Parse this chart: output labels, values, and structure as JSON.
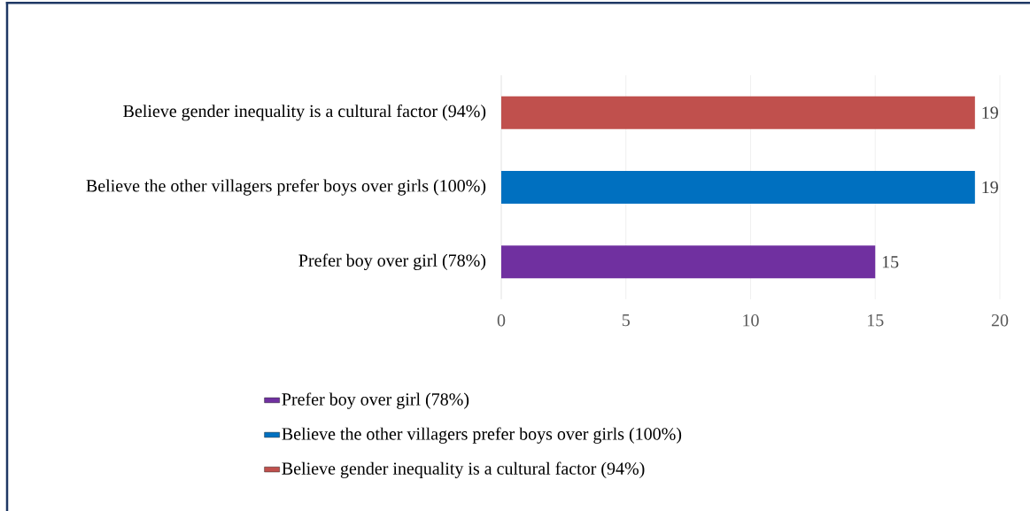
{
  "chart_data": {
    "type": "bar",
    "orientation": "horizontal",
    "categories": [
      "Believe gender inequality is a cultural factor (94%)",
      "Believe the other villagers prefer boys over girls (100%)",
      "Prefer boy over girl (78%)"
    ],
    "series": [
      {
        "name": "Believe gender inequality is a cultural factor (94%)",
        "color": "#c0504d",
        "values": [
          19,
          null,
          null
        ]
      },
      {
        "name": "Believe the other villagers prefer boys over girls (100%)",
        "color": "#0070c0",
        "values": [
          null,
          19,
          null
        ]
      },
      {
        "name": "Prefer boy over girl (78%)",
        "color": "#7030a0",
        "values": [
          null,
          null,
          15
        ]
      }
    ],
    "xlim": [
      0,
      20
    ],
    "xticks": [
      0,
      5,
      10,
      15,
      20
    ],
    "grid": "x",
    "data_labels": true,
    "legend": "bottom"
  }
}
